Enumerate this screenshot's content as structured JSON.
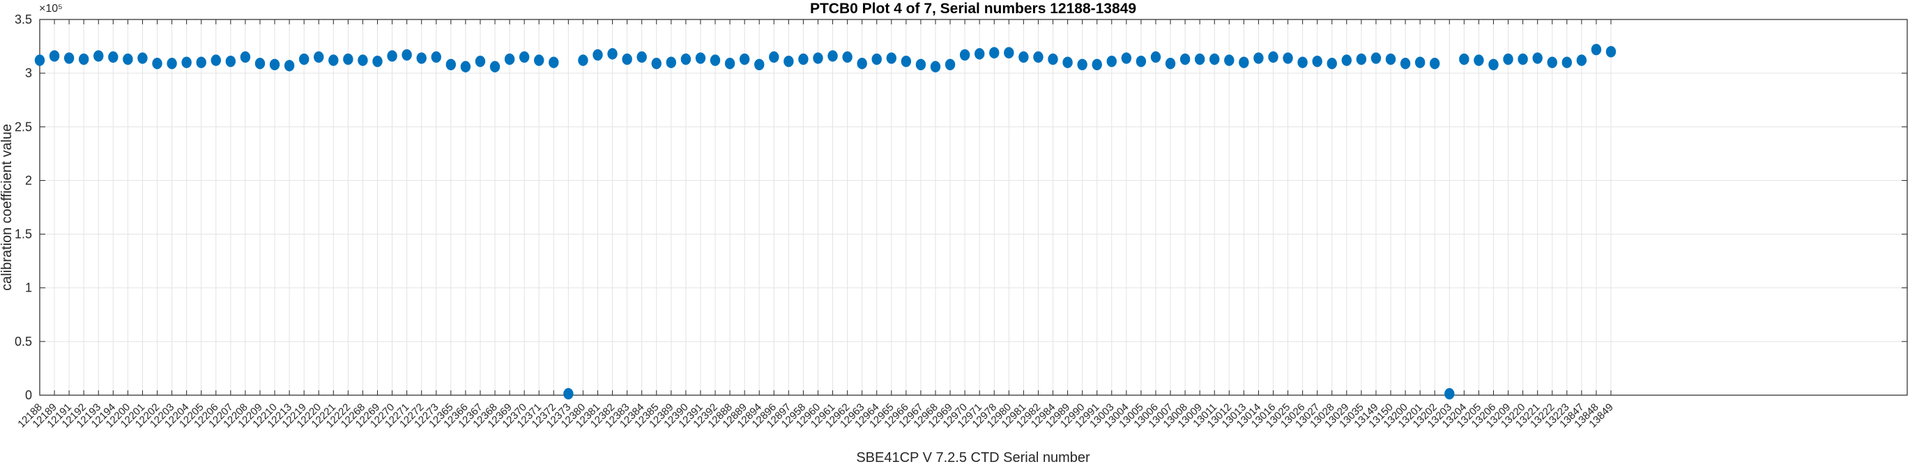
{
  "chart_data": {
    "type": "scatter",
    "title": "PTCB0 Plot 4 of 7, Serial numbers 12188-13849",
    "xlabel": "SBE41CP V 7.2.5 CTD Serial number",
    "ylabel": "calibration coefficient value",
    "y_exponent": "×10⁵",
    "ylim": [
      0,
      350000
    ],
    "y_tick_values": [
      0,
      50000,
      100000,
      150000,
      200000,
      250000,
      300000,
      350000
    ],
    "y_tick_labels": [
      "0",
      "0.5",
      "1",
      "1.5",
      "2",
      "2.5",
      "3",
      "3.5"
    ],
    "grid": true,
    "legend": "none",
    "marker": "filled-circle",
    "categories": [
      "12188",
      "12189",
      "12191",
      "12192",
      "12193",
      "12194",
      "12200",
      "12201",
      "12202",
      "12203",
      "12204",
      "12205",
      "12206",
      "12207",
      "12208",
      "12209",
      "12210",
      "12213",
      "12219",
      "12220",
      "12221",
      "12222",
      "12268",
      "12269",
      "12270",
      "12271",
      "12272",
      "12273",
      "12365",
      "12366",
      "12367",
      "12368",
      "12369",
      "12370",
      "12371",
      "12372",
      "12373",
      "12380",
      "12381",
      "12382",
      "12383",
      "12384",
      "12385",
      "12389",
      "12390",
      "12391",
      "12392",
      "12888",
      "12889",
      "12894",
      "12896",
      "12897",
      "12958",
      "12960",
      "12961",
      "12962",
      "12963",
      "12964",
      "12965",
      "12966",
      "12967",
      "12968",
      "12969",
      "12970",
      "12971",
      "12978",
      "12980",
      "12981",
      "12982",
      "12984",
      "12989",
      "12990",
      "12991",
      "13003",
      "13004",
      "13005",
      "13006",
      "13007",
      "13008",
      "13009",
      "13011",
      "13012",
      "13013",
      "13014",
      "13016",
      "13025",
      "13026",
      "13027",
      "13028",
      "13029",
      "13035",
      "13149",
      "13150",
      "13200",
      "13201",
      "13202",
      "13203",
      "13204",
      "13205",
      "13206",
      "13209",
      "13220",
      "13221",
      "13222",
      "13223",
      "13847",
      "13848",
      "13849"
    ],
    "values": [
      312000,
      316000,
      314000,
      313000,
      316000,
      315000,
      313000,
      314000,
      309000,
      309000,
      310000,
      310000,
      312000,
      311000,
      315000,
      309000,
      308000,
      307000,
      313000,
      315000,
      312000,
      313000,
      312000,
      311000,
      316000,
      317000,
      314000,
      315000,
      308000,
      306000,
      311000,
      306000,
      313000,
      315000,
      312000,
      310000,
      0,
      312000,
      317000,
      318000,
      313000,
      315000,
      309000,
      310000,
      313000,
      314000,
      312000,
      309000,
      313000,
      308000,
      315000,
      311000,
      313000,
      314000,
      316000,
      315000,
      309000,
      313000,
      314000,
      311000,
      308000,
      306000,
      308000,
      317000,
      318000,
      319000,
      319000,
      315000,
      315000,
      313000,
      310000,
      308000,
      308000,
      311000,
      314000,
      311000,
      315000,
      309000,
      313000,
      313000,
      313000,
      312000,
      310000,
      314000,
      315000,
      314000,
      310000,
      311000,
      309000,
      312000,
      313000,
      314000,
      313000,
      309000,
      310000,
      309000,
      0,
      313000,
      312000,
      308000,
      313000,
      313000,
      314000,
      310000,
      310000,
      312000,
      322000,
      320000
    ],
    "outlier_serials": [
      "12373",
      "13203"
    ],
    "colors": {
      "marker": "#0072BD",
      "grid": "#e3e3e3",
      "axis": "#262626",
      "background": "#ffffff"
    }
  }
}
